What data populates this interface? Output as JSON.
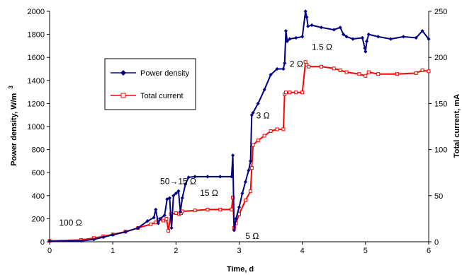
{
  "chart_data": {
    "type": "line",
    "xlabel": "Time, d",
    "ylabel": "Power density, W/m",
    "ylabel_sup": "3",
    "y2label": "Total current, mA",
    "xlim": [
      0,
      6
    ],
    "ylim": [
      0,
      2000
    ],
    "y2lim": [
      0,
      250
    ],
    "x_ticks": [
      "0",
      "1",
      "2",
      "3",
      "4",
      "5",
      "6"
    ],
    "y_ticks": [
      "0",
      "200",
      "400",
      "600",
      "800",
      "1000",
      "1200",
      "1400",
      "1600",
      "1800",
      "2000"
    ],
    "y2_ticks": [
      "0",
      "50",
      "100",
      "150",
      "200",
      "250"
    ],
    "grid": false,
    "legend_position": "upper-left inside",
    "series": [
      {
        "name": "Power density",
        "axis": "left",
        "color": "#000080",
        "marker": "diamond",
        "x": [
          0,
          0.5,
          0.7,
          0.85,
          1.0,
          1.2,
          1.4,
          1.55,
          1.65,
          1.68,
          1.72,
          1.75,
          1.82,
          1.86,
          1.9,
          1.93,
          1.96,
          2.0,
          2.04,
          2.07,
          2.1,
          2.15,
          2.2,
          2.3,
          2.5,
          2.7,
          2.88,
          2.9,
          2.92,
          2.95,
          3.0,
          3.05,
          3.1,
          3.15,
          3.18,
          3.2,
          3.22,
          3.3,
          3.4,
          3.5,
          3.6,
          3.7,
          3.72,
          3.74,
          3.76,
          3.8,
          3.9,
          4.0,
          4.05,
          4.07,
          4.09,
          4.15,
          4.3,
          4.5,
          4.6,
          4.65,
          4.7,
          4.8,
          4.95,
          4.99,
          5.0,
          5.02,
          5.05,
          5.2,
          5.4,
          5.6,
          5.8,
          5.9,
          6.0
        ],
        "y": [
          5,
          8,
          20,
          40,
          60,
          85,
          120,
          180,
          210,
          280,
          160,
          200,
          230,
          370,
          380,
          120,
          400,
          420,
          440,
          260,
          380,
          500,
          560,
          565,
          565,
          565,
          565,
          750,
          100,
          200,
          300,
          420,
          520,
          620,
          700,
          1100,
          1120,
          1200,
          1320,
          1450,
          1500,
          1500,
          1550,
          1830,
          1740,
          1760,
          1770,
          1780,
          2000,
          1950,
          1870,
          1880,
          1860,
          1840,
          1860,
          1800,
          1780,
          1760,
          1770,
          1680,
          1650,
          1740,
          1800,
          1780,
          1760,
          1780,
          1770,
          1830,
          1760
        ]
      },
      {
        "name": "Total current",
        "axis": "right",
        "color": "#ff0000",
        "marker": "square",
        "x": [
          0,
          0.5,
          0.7,
          0.85,
          1.0,
          1.2,
          1.4,
          1.6,
          1.68,
          1.72,
          1.8,
          1.85,
          1.88,
          1.92,
          2.0,
          2.05,
          2.08,
          2.1,
          2.3,
          2.5,
          2.7,
          2.88,
          2.9,
          2.92,
          2.95,
          3.0,
          3.1,
          3.18,
          3.2,
          3.22,
          3.3,
          3.4,
          3.5,
          3.6,
          3.7,
          3.72,
          3.74,
          3.8,
          3.9,
          4.0,
          4.05,
          4.07,
          4.1,
          4.3,
          4.5,
          4.6,
          4.7,
          4.9,
          5.0,
          5.05,
          5.2,
          5.5,
          5.8,
          5.9,
          6.0
        ],
        "y": [
          1,
          2,
          4,
          6,
          8,
          11,
          15,
          19,
          21,
          24,
          23,
          25,
          12,
          30,
          31,
          30,
          31,
          33,
          34,
          35,
          35,
          35,
          48,
          15,
          20,
          30,
          45,
          55,
          80,
          105,
          110,
          115,
          120,
          122,
          122,
          160,
          162,
          162,
          162,
          162,
          195,
          192,
          190,
          190,
          188,
          186,
          184,
          182,
          180,
          184,
          182,
          182,
          183,
          186,
          185
        ]
      }
    ],
    "annotations": [
      {
        "text": "100 Ω",
        "x": 0.15,
        "y": 118
      },
      {
        "text": "50→15 Ω",
        "x": 1.75,
        "y": 475
      },
      {
        "text": "15 Ω",
        "x": 2.38,
        "y": 375
      },
      {
        "text": "5 Ω",
        "x": 3.1,
        "y": 0
      },
      {
        "text": "3 Ω",
        "x": 3.27,
        "y": 1045
      },
      {
        "text": "2 Ω",
        "x": 3.8,
        "y": 1495
      },
      {
        "text": "1.5 Ω",
        "x": 4.15,
        "y": 1640
      }
    ]
  }
}
